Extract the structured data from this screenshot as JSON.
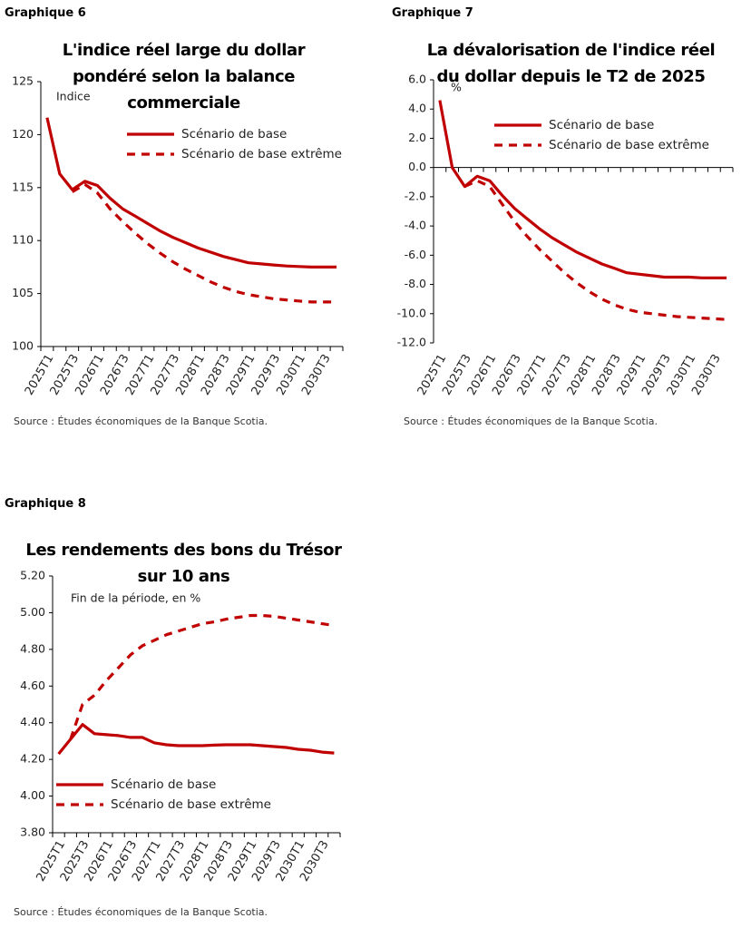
{
  "chart_data": [
    {
      "type": "line",
      "heading": "Graphique 6",
      "title": "L'indice réel large du dollar pondéré selon la balance commerciale",
      "unit_label": "Indice",
      "source": "Source : Études économiques de la Banque Scotia.",
      "categories": [
        "2025T1",
        null,
        "2025T3",
        null,
        "2026T1",
        null,
        "2026T3",
        null,
        "2027T1",
        null,
        "2027T3",
        null,
        "2028T1",
        null,
        "2028T3",
        null,
        "2029T1",
        null,
        "2029T3",
        null,
        "2030T1",
        null,
        "2030T3",
        null
      ],
      "ylim": [
        100,
        125
      ],
      "yticks": [
        100,
        105,
        110,
        115,
        120,
        125
      ],
      "legend": "upper right",
      "series": [
        {
          "name": "Scénario de base",
          "color": "#c00000",
          "dash": false,
          "values": [
            121.6,
            116.3,
            114.8,
            115.6,
            115.2,
            114.0,
            113.0,
            112.3,
            111.6,
            110.9,
            110.3,
            109.8,
            109.3,
            108.9,
            108.5,
            108.2,
            107.9,
            107.8,
            107.7,
            107.6,
            107.55,
            107.5,
            107.5,
            107.5
          ]
        },
        {
          "name": "Scénario de base extrême",
          "color": "#c00000",
          "dash": true,
          "values": [
            null,
            null,
            114.6,
            115.3,
            114.5,
            113.0,
            111.8,
            110.7,
            109.7,
            108.8,
            108.0,
            107.3,
            106.7,
            106.1,
            105.6,
            105.2,
            104.9,
            104.7,
            104.5,
            104.4,
            104.3,
            104.2,
            104.2,
            104.2
          ]
        }
      ]
    },
    {
      "type": "line",
      "heading": "Graphique 7",
      "title": "La dévalorisation de l'indice réel du dollar depuis le T2 de 2025",
      "unit_label": "%",
      "source": "Source : Études économiques de la Banque Scotia.",
      "categories": [
        "2025T1",
        null,
        "2025T3",
        null,
        "2026T1",
        null,
        "2026T3",
        null,
        "2027T1",
        null,
        "2027T3",
        null,
        "2028T1",
        null,
        "2028T3",
        null,
        "2029T1",
        null,
        "2029T3",
        null,
        "2030T1",
        null,
        "2030T3",
        null
      ],
      "ylim": [
        -12,
        6
      ],
      "yticks": [
        {
          "value": -12,
          "label": "-12.0"
        },
        {
          "value": -10,
          "label": "-10.0"
        },
        {
          "value": -8,
          "label": "-8.0"
        },
        {
          "value": -6,
          "label": "-6.0"
        },
        {
          "value": -4,
          "label": "-4.0"
        },
        {
          "value": -2,
          "label": "-2.0"
        },
        {
          "value": 0,
          "label": "0.0"
        },
        {
          "value": 2,
          "label": "2.0"
        },
        {
          "value": 4,
          "label": "4.0"
        },
        {
          "value": 6,
          "label": "6.0"
        }
      ],
      "legend": "upper right",
      "series": [
        {
          "name": "Scénario de base",
          "color": "#c00000",
          "dash": false,
          "values": [
            4.6,
            0.0,
            -1.3,
            -0.6,
            -0.9,
            -1.9,
            -2.8,
            -3.5,
            -4.2,
            -4.8,
            -5.3,
            -5.8,
            -6.2,
            -6.6,
            -6.9,
            -7.2,
            -7.3,
            -7.4,
            -7.5,
            -7.5,
            -7.5,
            -7.55,
            -7.55,
            -7.55
          ]
        },
        {
          "name": "Scénario de base extrême",
          "color": "#c00000",
          "dash": true,
          "values": [
            null,
            null,
            -1.3,
            -0.9,
            -1.3,
            -2.5,
            -3.7,
            -4.7,
            -5.6,
            -6.4,
            -7.2,
            -7.9,
            -8.5,
            -9.0,
            -9.4,
            -9.7,
            -9.9,
            -10.0,
            -10.1,
            -10.2,
            -10.25,
            -10.3,
            -10.35,
            -10.4
          ]
        }
      ]
    },
    {
      "type": "line",
      "heading": "Graphique 8",
      "title": "Les rendements des bons du Trésor sur 10 ans",
      "unit_label": "Fin de la période, en %",
      "source": "Source : Études économiques de la Banque Scotia.",
      "categories": [
        "2025T1",
        null,
        "2025T3",
        null,
        "2026T1",
        null,
        "2026T3",
        null,
        "2027T1",
        null,
        "2027T3",
        null,
        "2028T1",
        null,
        "2028T3",
        null,
        "2029T1",
        null,
        "2029T3",
        null,
        "2030T1",
        null,
        "2030T3",
        null
      ],
      "ylim": [
        3.8,
        5.2
      ],
      "yticks": [
        {
          "value": 3.8,
          "label": "3.80"
        },
        {
          "value": 4.0,
          "label": "4.00"
        },
        {
          "value": 4.2,
          "label": "4.20"
        },
        {
          "value": 4.4,
          "label": "4.40"
        },
        {
          "value": 4.6,
          "label": "4.60"
        },
        {
          "value": 4.8,
          "label": "4.80"
        },
        {
          "value": 5.0,
          "label": "5.00"
        },
        {
          "value": 5.2,
          "label": "5.20"
        }
      ],
      "legend": "lower left",
      "series": [
        {
          "name": "Scénario de base",
          "color": "#c00000",
          "dash": false,
          "values": [
            4.23,
            4.31,
            4.39,
            4.34,
            4.335,
            4.33,
            4.32,
            4.32,
            4.29,
            4.28,
            4.275,
            4.275,
            4.275,
            4.278,
            4.28,
            4.28,
            4.28,
            4.275,
            4.27,
            4.265,
            4.255,
            4.25,
            4.24,
            4.235
          ]
        },
        {
          "name": "Scénario de base extrême",
          "color": "#c00000",
          "dash": true,
          "values": [
            null,
            4.31,
            4.5,
            4.55,
            4.63,
            4.7,
            4.77,
            4.82,
            4.85,
            4.88,
            4.9,
            4.92,
            4.94,
            4.95,
            4.965,
            4.975,
            4.985,
            4.985,
            4.98,
            4.97,
            4.96,
            4.95,
            4.94,
            4.93
          ]
        }
      ]
    }
  ]
}
